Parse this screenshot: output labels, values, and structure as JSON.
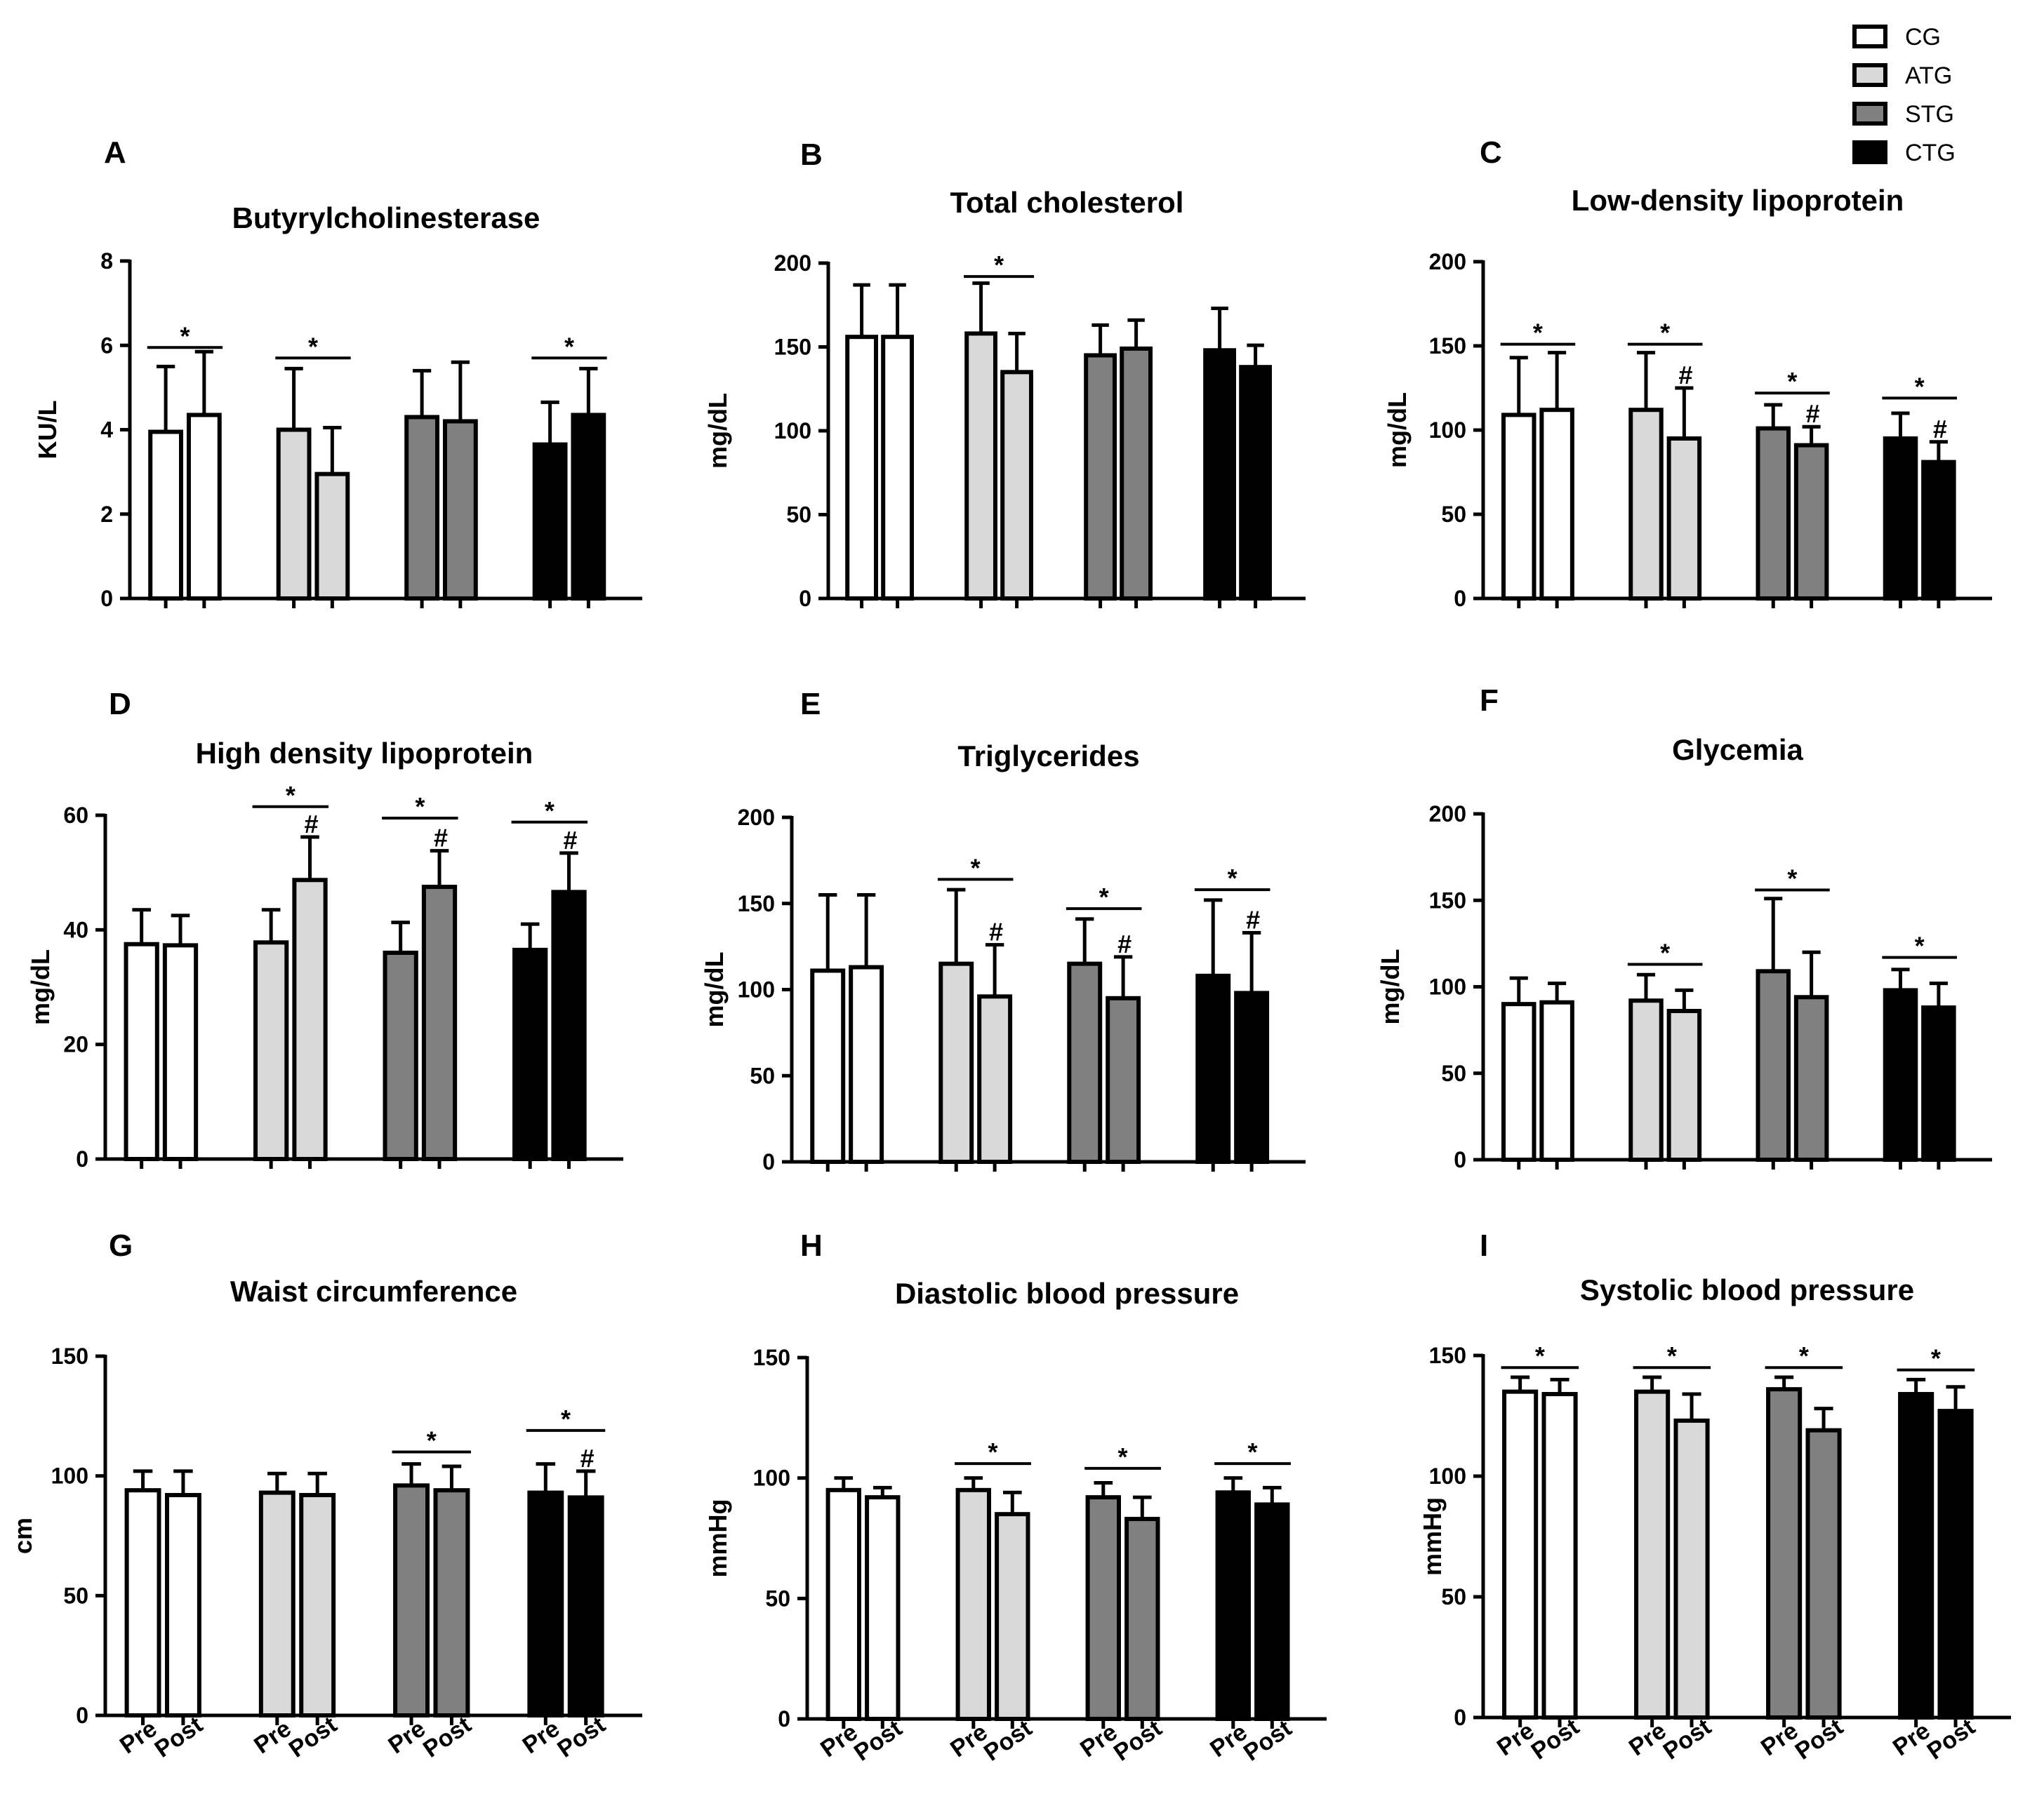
{
  "legend": [
    {
      "label": "CG",
      "color": "#ffffff"
    },
    {
      "label": "ATG",
      "color": "#d9d9d9"
    },
    {
      "label": "STG",
      "color": "#808080"
    },
    {
      "label": "CTG",
      "color": "#000000"
    }
  ],
  "chart_data": [
    {
      "panel": "A",
      "type": "bar",
      "title": "Butyrylcholinesterase",
      "ylabel": "KU/L",
      "ylim": [
        0,
        8
      ],
      "yticks": [
        0,
        2,
        4,
        6,
        8
      ],
      "xticklabels": [],
      "groups": [
        "CG",
        "ATG",
        "STG",
        "CTG"
      ],
      "categories": [
        "Pre",
        "Post"
      ],
      "series": [
        {
          "name": "CG",
          "values": [
            3.95,
            4.35
          ],
          "errors": [
            1.55,
            1.5
          ],
          "post_marker": ""
        },
        {
          "name": "ATG",
          "values": [
            4.0,
            2.95
          ],
          "errors": [
            1.45,
            1.1
          ],
          "post_marker": ""
        },
        {
          "name": "STG",
          "values": [
            4.3,
            4.2
          ],
          "errors": [
            1.1,
            1.4
          ],
          "post_marker": ""
        },
        {
          "name": "CTG",
          "values": [
            3.65,
            4.35
          ],
          "errors": [
            1.0,
            1.1
          ],
          "post_marker": ""
        }
      ],
      "significance": [
        {
          "group": "CG",
          "label": "*",
          "at": 5.95
        },
        {
          "group": "ATG",
          "label": "*",
          "at": 5.7
        },
        {
          "group": "CTG",
          "label": "*",
          "at": 5.7
        }
      ]
    },
    {
      "panel": "B",
      "type": "bar",
      "title": "Total cholesterol",
      "ylabel": "mg/dL",
      "ylim": [
        0,
        200
      ],
      "yticks": [
        0,
        50,
        100,
        150,
        200
      ],
      "xticklabels": [],
      "groups": [
        "CG",
        "ATG",
        "STG",
        "CTG"
      ],
      "categories": [
        "Pre",
        "Post"
      ],
      "series": [
        {
          "name": "CG",
          "values": [
            156,
            156
          ],
          "errors": [
            31,
            31
          ],
          "post_marker": ""
        },
        {
          "name": "ATG",
          "values": [
            158,
            135
          ],
          "errors": [
            30,
            23
          ],
          "post_marker": ""
        },
        {
          "name": "STG",
          "values": [
            145,
            149
          ],
          "errors": [
            18,
            17
          ],
          "post_marker": ""
        },
        {
          "name": "CTG",
          "values": [
            148,
            138
          ],
          "errors": [
            25,
            13
          ],
          "post_marker": ""
        }
      ],
      "significance": [
        {
          "group": "ATG",
          "label": "*",
          "at": 192
        }
      ]
    },
    {
      "panel": "C",
      "type": "bar",
      "title": "Low-density lipoprotein",
      "ylabel": "mg/dL",
      "ylim": [
        0,
        200
      ],
      "yticks": [
        0,
        50,
        100,
        150,
        200
      ],
      "xticklabels": [],
      "groups": [
        "CG",
        "ATG",
        "STG",
        "CTG"
      ],
      "categories": [
        "Pre",
        "Post"
      ],
      "series": [
        {
          "name": "CG",
          "values": [
            109,
            112
          ],
          "errors": [
            34,
            34
          ],
          "post_marker": ""
        },
        {
          "name": "ATG",
          "values": [
            112,
            95
          ],
          "errors": [
            34,
            30
          ],
          "post_marker": "#"
        },
        {
          "name": "STG",
          "values": [
            101,
            91
          ],
          "errors": [
            14,
            11
          ],
          "post_marker": "#"
        },
        {
          "name": "CTG",
          "values": [
            95,
            81
          ],
          "errors": [
            15,
            12
          ],
          "post_marker": "#"
        }
      ],
      "significance": [
        {
          "group": "CG",
          "label": "*",
          "at": 151
        },
        {
          "group": "ATG",
          "label": "*",
          "at": 151
        },
        {
          "group": "STG",
          "label": "*",
          "at": 122
        },
        {
          "group": "CTG",
          "label": "*",
          "at": 119
        }
      ]
    },
    {
      "panel": "D",
      "type": "bar",
      "title": "High density lipoprotein",
      "ylabel": "mg/dL",
      "ylim": [
        0,
        60
      ],
      "yticks": [
        0,
        20,
        40,
        60
      ],
      "xticklabels": [],
      "groups": [
        "CG",
        "ATG",
        "STG",
        "CTG"
      ],
      "categories": [
        "Pre",
        "Post"
      ],
      "series": [
        {
          "name": "CG",
          "values": [
            37.5,
            37.3
          ],
          "errors": [
            6.0,
            5.2
          ],
          "post_marker": ""
        },
        {
          "name": "ATG",
          "values": [
            37.8,
            48.7
          ],
          "errors": [
            5.7,
            7.5
          ],
          "post_marker": "#"
        },
        {
          "name": "STG",
          "values": [
            36.0,
            47.5
          ],
          "errors": [
            5.3,
            6.3
          ],
          "post_marker": "#"
        },
        {
          "name": "CTG",
          "values": [
            36.5,
            46.6
          ],
          "errors": [
            4.5,
            6.8
          ],
          "post_marker": "#"
        }
      ],
      "significance": [
        {
          "group": "ATG",
          "label": "*",
          "at": 61.5
        },
        {
          "group": "STG",
          "label": "*",
          "at": 59.5
        },
        {
          "group": "CTG",
          "label": "*",
          "at": 58.8
        }
      ]
    },
    {
      "panel": "E",
      "type": "bar",
      "title": "Triglycerides",
      "ylabel": "mg/dL",
      "ylim": [
        0,
        200
      ],
      "yticks": [
        0,
        50,
        100,
        150,
        200
      ],
      "xticklabels": [],
      "groups": [
        "CG",
        "ATG",
        "STG",
        "CTG"
      ],
      "categories": [
        "Pre",
        "Post"
      ],
      "series": [
        {
          "name": "CG",
          "values": [
            111,
            113
          ],
          "errors": [
            44,
            42
          ],
          "post_marker": ""
        },
        {
          "name": "ATG",
          "values": [
            115,
            96
          ],
          "errors": [
            43,
            30
          ],
          "post_marker": "#"
        },
        {
          "name": "STG",
          "values": [
            115,
            95
          ],
          "errors": [
            26,
            24
          ],
          "post_marker": "#"
        },
        {
          "name": "CTG",
          "values": [
            108,
            98
          ],
          "errors": [
            44,
            35
          ],
          "post_marker": "#"
        }
      ],
      "significance": [
        {
          "group": "ATG",
          "label": "*",
          "at": 164
        },
        {
          "group": "STG",
          "label": "*",
          "at": 147
        },
        {
          "group": "CTG",
          "label": "*",
          "at": 158
        }
      ]
    },
    {
      "panel": "F",
      "type": "bar",
      "title": "Glycemia",
      "ylabel": "mg/dL",
      "ylim": [
        0,
        200
      ],
      "yticks": [
        0,
        50,
        100,
        150,
        200
      ],
      "xticklabels": [],
      "groups": [
        "CG",
        "ATG",
        "STG",
        "CTG"
      ],
      "categories": [
        "Pre",
        "Post"
      ],
      "series": [
        {
          "name": "CG",
          "values": [
            90,
            91
          ],
          "errors": [
            15,
            11
          ],
          "post_marker": ""
        },
        {
          "name": "ATG",
          "values": [
            92,
            86
          ],
          "errors": [
            15,
            12
          ],
          "post_marker": ""
        },
        {
          "name": "STG",
          "values": [
            109,
            94
          ],
          "errors": [
            42,
            26
          ],
          "post_marker": ""
        },
        {
          "name": "CTG",
          "values": [
            98,
            88
          ],
          "errors": [
            12,
            14
          ],
          "post_marker": ""
        }
      ],
      "significance": [
        {
          "group": "ATG",
          "label": "*",
          "at": 113
        },
        {
          "group": "STG",
          "label": "*",
          "at": 156
        },
        {
          "group": "CTG",
          "label": "*",
          "at": 117
        }
      ]
    },
    {
      "panel": "G",
      "type": "bar",
      "title": "Waist circumference",
      "ylabel": "cm",
      "ylim": [
        0,
        150
      ],
      "yticks": [
        0,
        50,
        100,
        150
      ],
      "xticklabels": [
        "Pre",
        "Post"
      ],
      "groups": [
        "CG",
        "ATG",
        "STG",
        "CTG"
      ],
      "categories": [
        "Pre",
        "Post"
      ],
      "series": [
        {
          "name": "CG",
          "values": [
            94,
            92
          ],
          "errors": [
            8,
            10
          ],
          "post_marker": ""
        },
        {
          "name": "ATG",
          "values": [
            93,
            92
          ],
          "errors": [
            8,
            9
          ],
          "post_marker": ""
        },
        {
          "name": "STG",
          "values": [
            96,
            94
          ],
          "errors": [
            9,
            10
          ],
          "post_marker": ""
        },
        {
          "name": "CTG",
          "values": [
            93,
            91
          ],
          "errors": [
            12,
            11
          ],
          "post_marker": "#"
        }
      ],
      "significance": [
        {
          "group": "STG",
          "label": "*",
          "at": 110
        },
        {
          "group": "CTG",
          "label": "*",
          "at": 119
        }
      ]
    },
    {
      "panel": "H",
      "type": "bar",
      "title": "Diastolic blood pressure",
      "ylabel": "mmHg",
      "ylim": [
        0,
        150
      ],
      "yticks": [
        0,
        50,
        100,
        150
      ],
      "xticklabels": [
        "Pre",
        "Post"
      ],
      "groups": [
        "CG",
        "ATG",
        "STG",
        "CTG"
      ],
      "categories": [
        "Pre",
        "Post"
      ],
      "series": [
        {
          "name": "CG",
          "values": [
            95,
            92
          ],
          "errors": [
            5,
            4
          ],
          "post_marker": ""
        },
        {
          "name": "ATG",
          "values": [
            95,
            85
          ],
          "errors": [
            5,
            9
          ],
          "post_marker": ""
        },
        {
          "name": "STG",
          "values": [
            92,
            83
          ],
          "errors": [
            6,
            9
          ],
          "post_marker": ""
        },
        {
          "name": "CTG",
          "values": [
            94,
            89
          ],
          "errors": [
            6,
            7
          ],
          "post_marker": ""
        }
      ],
      "significance": [
        {
          "group": "ATG",
          "label": "*",
          "at": 106
        },
        {
          "group": "STG",
          "label": "*",
          "at": 104
        },
        {
          "group": "CTG",
          "label": "*",
          "at": 106
        }
      ]
    },
    {
      "panel": "I",
      "type": "bar",
      "title": "Systolic blood pressure",
      "ylabel": "mmHg",
      "ylim": [
        0,
        150
      ],
      "yticks": [
        0,
        50,
        100,
        150
      ],
      "xticklabels": [
        "Pre",
        "Post"
      ],
      "groups": [
        "CG",
        "ATG",
        "STG",
        "CTG"
      ],
      "categories": [
        "Pre",
        "Post"
      ],
      "series": [
        {
          "name": "CG",
          "values": [
            135,
            134
          ],
          "errors": [
            6,
            6
          ],
          "post_marker": ""
        },
        {
          "name": "ATG",
          "values": [
            135,
            123
          ],
          "errors": [
            6,
            11
          ],
          "post_marker": ""
        },
        {
          "name": "STG",
          "values": [
            136,
            119
          ],
          "errors": [
            5,
            9
          ],
          "post_marker": ""
        },
        {
          "name": "CTG",
          "values": [
            134,
            127
          ],
          "errors": [
            6,
            10
          ],
          "post_marker": ""
        }
      ],
      "significance": [
        {
          "group": "CG",
          "label": "*",
          "at": 145
        },
        {
          "group": "ATG",
          "label": "*",
          "at": 145
        },
        {
          "group": "STG",
          "label": "*",
          "at": 145
        },
        {
          "group": "CTG",
          "label": "*",
          "at": 144
        }
      ]
    }
  ]
}
